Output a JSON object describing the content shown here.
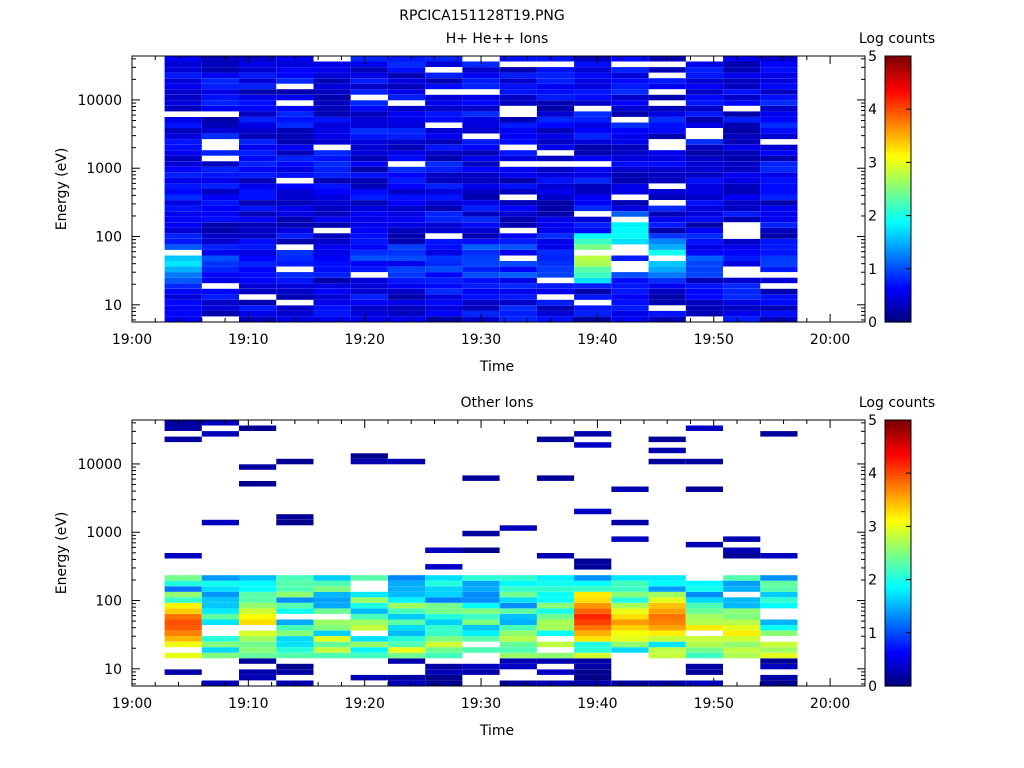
{
  "figure": {
    "title": "RPCICA151128T19.PNG"
  },
  "chart_data": [
    {
      "type": "heatmap",
      "title": "H+ He++ Ions",
      "xlabel": "Time",
      "ylabel": "Energy (eV)",
      "x_ticks": [
        "19:00",
        "19:10",
        "19:20",
        "19:30",
        "19:40",
        "19:50",
        "20:00"
      ],
      "x_range_minutes": [
        0,
        63
      ],
      "y_scale": "log",
      "y_ticks": [
        {
          "value": 10,
          "label": "10"
        },
        {
          "value": 100,
          "label": "100"
        },
        {
          "value": 1000,
          "label": "1000"
        },
        {
          "value": 10000,
          "label": "10000"
        }
      ],
      "y_range": [
        5.6,
        44000
      ],
      "colorbar": {
        "label": "Log counts",
        "range": [
          0,
          5
        ],
        "ticks": [
          "0",
          "1",
          "2",
          "3",
          "4",
          "5"
        ],
        "colormap": "jet"
      },
      "time_bins_start_minutes": [
        2.8,
        6.0,
        9.2,
        12.4,
        15.6,
        18.8,
        22.0,
        25.2,
        28.4,
        31.6,
        34.8,
        38.0,
        41.2,
        44.4,
        47.6,
        50.8,
        54.0
      ],
      "bin_width_minutes": 3.2,
      "energy_channel_count": 48,
      "energy_channel_range": [
        5.6,
        44000
      ],
      "peak_channels": [
        {
          "bin": 0,
          "energy": 40,
          "level": 1.7
        },
        {
          "bin": 11,
          "energy": 50,
          "level": 2.8
        },
        {
          "bin": 12,
          "energy": 110,
          "level": 2.0
        },
        {
          "bin": 13,
          "energy": 50,
          "level": 1.9
        }
      ]
    },
    {
      "type": "heatmap",
      "title": "Other Ions",
      "xlabel": "Time",
      "ylabel": "Energy (eV)",
      "x_ticks": [
        "19:00",
        "19:10",
        "19:20",
        "19:30",
        "19:40",
        "19:50",
        "20:00"
      ],
      "x_range_minutes": [
        0,
        63
      ],
      "y_scale": "log",
      "y_ticks": [
        {
          "value": 10,
          "label": "10"
        },
        {
          "value": 100,
          "label": "100"
        },
        {
          "value": 1000,
          "label": "1000"
        },
        {
          "value": 10000,
          "label": "10000"
        }
      ],
      "y_range": [
        5.6,
        44000
      ],
      "colorbar": {
        "label": "Log counts",
        "range": [
          0,
          5
        ],
        "ticks": [
          "0",
          "1",
          "2",
          "3",
          "4",
          "5"
        ],
        "colormap": "jet"
      },
      "time_bins_start_minutes": [
        2.8,
        6.0,
        9.2,
        12.4,
        15.6,
        18.8,
        22.0,
        25.2,
        28.4,
        31.6,
        34.8,
        38.0,
        41.2,
        44.4,
        47.6,
        50.8,
        54.0
      ],
      "bin_width_minutes": 3.2,
      "energy_channel_count": 48,
      "energy_channel_range": [
        5.6,
        44000
      ],
      "peak_channels": [
        {
          "bin": 0,
          "energy": 45,
          "level": 4.0
        },
        {
          "bin": 2,
          "energy": 45,
          "level": 3.3
        },
        {
          "bin": 11,
          "energy": 55,
          "level": 4.2
        },
        {
          "bin": 12,
          "energy": 45,
          "level": 3.5
        },
        {
          "bin": 13,
          "energy": 55,
          "level": 3.8
        },
        {
          "bin": 14,
          "energy": 35,
          "level": 3.2
        },
        {
          "bin": 15,
          "energy": 35,
          "level": 3.1
        }
      ]
    }
  ]
}
